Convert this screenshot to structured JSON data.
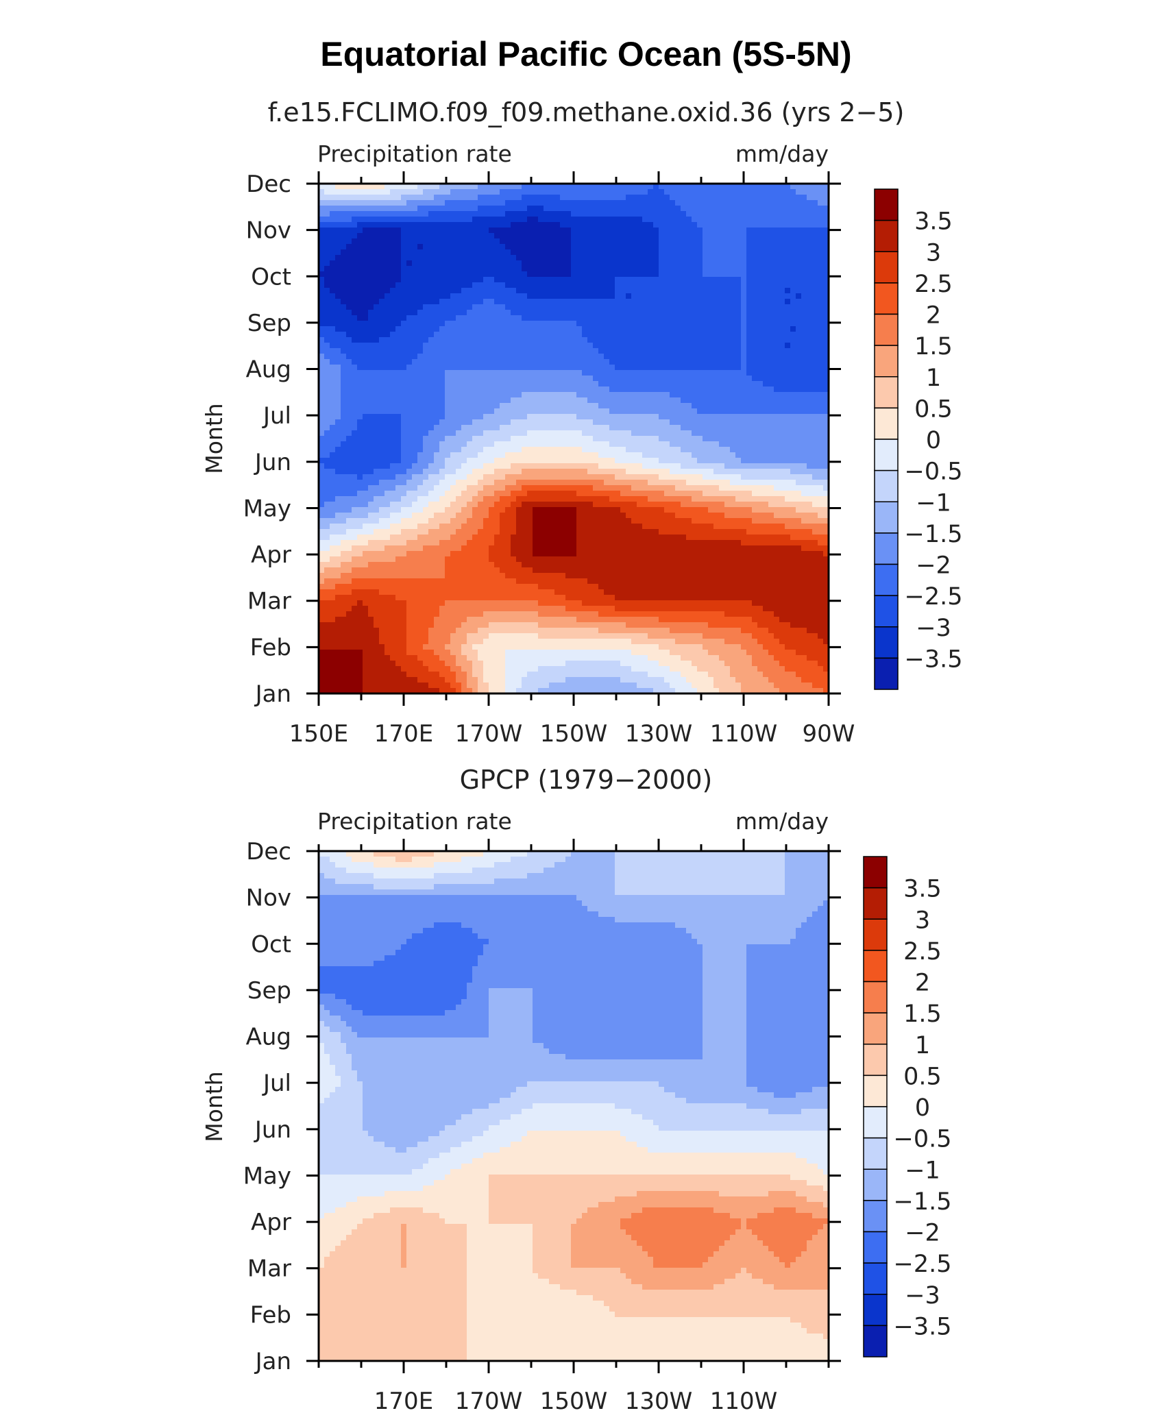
{
  "figure": {
    "title": "Equatorial Pacific Ocean (5S-5N)"
  },
  "colors": {
    "contour_scale": [
      "#08088c",
      "#0a1fb0",
      "#0a35cc",
      "#1f52e6",
      "#3d6ef2",
      "#6a91f5",
      "#9ab6f8",
      "#c4d5fb",
      "#e2ecfc",
      "#fde8d6",
      "#fcc9ad",
      "#f9a57c",
      "#f67e4d",
      "#f2571f",
      "#dc3a0b",
      "#b41d04",
      "#8c0000"
    ]
  },
  "chart_data": [
    {
      "type": "heatmap",
      "title": "f.e15.FCLIMO.f09_f09.methane.oxid.36 (yrs 2−5)",
      "left_label": "Precipitation rate",
      "right_label": "mm/day",
      "ylabel": "Month",
      "xlabel": "",
      "x_ticks": [
        "150E",
        "170E",
        "170W",
        "150W",
        "130W",
        "110W",
        "90W"
      ],
      "y_ticks": [
        "Jan",
        "Feb",
        "Mar",
        "Apr",
        "May",
        "Jun",
        "Jul",
        "Aug",
        "Sep",
        "Oct",
        "Nov",
        "Dec"
      ],
      "colorbar_labels": [
        "3.5",
        "3",
        "2.5",
        "2",
        "1.5",
        "1",
        "0.5",
        "0",
        "−0.5",
        "−1",
        "−1.5",
        "−2",
        "−2.5",
        "−3",
        "−3.5"
      ],
      "x_range_deg_east": [
        150,
        270
      ],
      "x_grid_deg_east": [
        150,
        160,
        170,
        180,
        190,
        200,
        210,
        220,
        230,
        240,
        250,
        260,
        270
      ],
      "month_rows": [
        {
          "month": "Jan",
          "values": [
            4.0,
            4.0,
            4.0,
            3.5,
            1.0,
            -0.5,
            -1.0,
            -1.0,
            -0.5,
            0.5,
            1.5,
            2.0,
            2.5
          ]
        },
        {
          "month": "Feb",
          "values": [
            4.0,
            4.0,
            3.0,
            2.0,
            0.5,
            0.5,
            0.5,
            0.5,
            1.0,
            1.5,
            2.0,
            3.0,
            3.5
          ]
        },
        {
          "month": "Mar",
          "values": [
            3.0,
            3.5,
            3.0,
            2.5,
            2.5,
            2.5,
            3.0,
            3.5,
            3.5,
            3.5,
            3.5,
            4.0,
            4.0
          ]
        },
        {
          "month": "Apr",
          "values": [
            0.5,
            1.5,
            2.0,
            2.5,
            3.0,
            4.0,
            4.0,
            4.0,
            4.0,
            4.0,
            4.0,
            4.0,
            3.5
          ]
        },
        {
          "month": "May",
          "values": [
            -1.5,
            -1.0,
            0.0,
            1.0,
            2.5,
            4.0,
            4.0,
            3.5,
            3.0,
            2.5,
            2.0,
            1.5,
            1.0
          ]
        },
        {
          "month": "Jun",
          "values": [
            -2.0,
            -2.5,
            -2.0,
            -0.5,
            0.5,
            1.0,
            1.0,
            0.5,
            0.0,
            -0.5,
            -1.0,
            -1.0,
            -1.5
          ]
        },
        {
          "month": "Jul",
          "values": [
            -1.0,
            -2.0,
            -2.0,
            -1.5,
            -1.0,
            -0.5,
            -0.5,
            -1.0,
            -1.0,
            -1.5,
            -1.5,
            -1.5,
            -1.5
          ]
        },
        {
          "month": "Aug",
          "values": [
            -1.0,
            -2.0,
            -2.0,
            -1.5,
            -1.5,
            -1.5,
            -1.5,
            -2.0,
            -2.0,
            -2.0,
            -2.0,
            -2.5,
            -2.5
          ]
        },
        {
          "month": "Sep",
          "values": [
            -2.5,
            -3.0,
            -2.5,
            -2.0,
            -1.5,
            -2.0,
            -2.0,
            -2.5,
            -2.5,
            -2.5,
            -2.0,
            -2.5,
            -2.5
          ]
        },
        {
          "month": "Oct",
          "values": [
            -3.0,
            -3.5,
            -3.0,
            -3.0,
            -2.5,
            -3.0,
            -3.0,
            -2.5,
            -2.5,
            -2.0,
            -2.0,
            -2.5,
            -2.5
          ]
        },
        {
          "month": "Nov",
          "values": [
            -2.5,
            -3.0,
            -3.0,
            -3.0,
            -3.0,
            -3.5,
            -3.0,
            -3.0,
            -2.5,
            -2.0,
            -2.0,
            -2.0,
            -2.0
          ]
        },
        {
          "month": "Dec",
          "values": [
            0.5,
            1.0,
            0.5,
            -0.5,
            -1.0,
            -1.5,
            -1.5,
            -1.5,
            -2.0,
            -1.5,
            -1.5,
            -1.5,
            -1.0
          ]
        }
      ]
    },
    {
      "type": "heatmap",
      "title": "GPCP (1979−2000)",
      "left_label": "Precipitation rate",
      "right_label": "mm/day",
      "ylabel": "Month",
      "xlabel": "",
      "x_ticks": [
        "170E",
        "170W",
        "150W",
        "130W",
        "110W"
      ],
      "y_ticks": [
        "Jan",
        "Feb",
        "Mar",
        "Apr",
        "May",
        "Jun",
        "Jul",
        "Aug",
        "Sep",
        "Oct",
        "Nov",
        "Dec"
      ],
      "colorbar_labels": [
        "3.5",
        "3",
        "2.5",
        "2",
        "1.5",
        "1",
        "0.5",
        "0",
        "−0.5",
        "−1",
        "−1.5",
        "−2",
        "−2.5",
        "−3",
        "−3.5"
      ],
      "x_range_deg_east": [
        150,
        270
      ],
      "x_grid_deg_east": [
        150,
        160,
        170,
        180,
        190,
        200,
        210,
        220,
        230,
        240,
        250,
        260,
        270
      ],
      "month_rows": [
        {
          "month": "Jan",
          "values": [
            1.0,
            1.0,
            1.5,
            1.5,
            0.5,
            0.5,
            0.5,
            0.5,
            0.5,
            0.5,
            0.5,
            0.5,
            0.5
          ]
        },
        {
          "month": "Feb",
          "values": [
            1.0,
            1.5,
            1.0,
            1.5,
            0.5,
            0.5,
            0.5,
            1.0,
            1.0,
            1.0,
            1.0,
            1.0,
            1.5
          ]
        },
        {
          "month": "Mar",
          "values": [
            1.0,
            1.5,
            1.5,
            1.5,
            0.5,
            1.0,
            1.5,
            1.5,
            2.0,
            2.0,
            1.5,
            2.0,
            1.5
          ]
        },
        {
          "month": "Apr",
          "values": [
            0.5,
            1.0,
            1.5,
            1.0,
            1.0,
            1.0,
            1.5,
            2.0,
            2.5,
            2.5,
            2.0,
            2.5,
            2.0
          ]
        },
        {
          "month": "May",
          "values": [
            0.0,
            0.0,
            0.0,
            0.5,
            1.0,
            1.0,
            1.0,
            1.0,
            1.0,
            1.0,
            1.0,
            1.0,
            0.5
          ]
        },
        {
          "month": "Jun",
          "values": [
            -0.5,
            -0.5,
            -1.0,
            -0.5,
            0.0,
            0.5,
            0.5,
            0.5,
            0.0,
            0.0,
            0.0,
            0.0,
            0.0
          ]
        },
        {
          "month": "Jul",
          "values": [
            0.5,
            -0.5,
            -1.0,
            -1.0,
            -1.0,
            -0.5,
            -0.5,
            -0.5,
            -0.5,
            -1.0,
            -1.0,
            -1.5,
            -1.0
          ]
        },
        {
          "month": "Aug",
          "values": [
            0.0,
            -1.0,
            -1.0,
            -1.0,
            -1.0,
            -1.0,
            -1.5,
            -1.5,
            -1.5,
            -1.0,
            -1.0,
            -1.5,
            -1.0
          ]
        },
        {
          "month": "Sep",
          "values": [
            -1.5,
            -2.0,
            -2.0,
            -2.0,
            -1.0,
            -1.0,
            -1.5,
            -1.5,
            -1.5,
            -1.0,
            -1.0,
            -1.5,
            -1.5
          ]
        },
        {
          "month": "Oct",
          "values": [
            -1.5,
            -1.0,
            -1.5,
            -2.0,
            -1.5,
            -1.0,
            -1.5,
            -1.5,
            -1.5,
            -1.0,
            -1.0,
            -1.0,
            -1.5
          ]
        },
        {
          "month": "Nov",
          "values": [
            -1.0,
            -1.0,
            -1.0,
            -1.0,
            -1.0,
            -1.0,
            -1.0,
            -0.5,
            -0.5,
            -0.5,
            -0.5,
            -0.5,
            -1.0
          ]
        },
        {
          "month": "Dec",
          "values": [
            0.0,
            1.0,
            1.5,
            1.0,
            0.5,
            0.0,
            -0.5,
            -0.5,
            -0.5,
            -0.5,
            -0.5,
            -0.5,
            -0.5
          ]
        }
      ]
    }
  ]
}
